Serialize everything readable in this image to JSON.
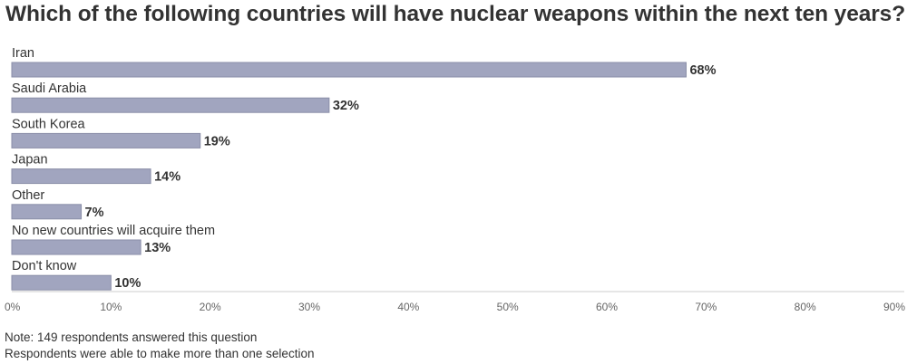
{
  "chart_data": {
    "type": "bar",
    "orientation": "horizontal",
    "title": "Which of the following countries will have nuclear weapons within the next ten years?",
    "categories": [
      "Iran",
      "Saudi Arabia",
      "South Korea",
      "Japan",
      "Other",
      "No new countries will acquire them",
      "Don't know"
    ],
    "values": [
      68,
      32,
      19,
      14,
      7,
      13,
      10
    ],
    "value_labels": [
      "68%",
      "32%",
      "19%",
      "14%",
      "7%",
      "13%",
      "10%"
    ],
    "xlim": [
      0,
      90
    ],
    "x_ticks": [
      0,
      10,
      20,
      30,
      40,
      50,
      60,
      70,
      80,
      90
    ],
    "x_tick_labels": [
      "0%",
      "10%",
      "20%",
      "30%",
      "40%",
      "50%",
      "60%",
      "70%",
      "80%",
      "90%"
    ],
    "xlabel": "",
    "ylabel": "",
    "grid": false,
    "bar_color": "#a1a5bf",
    "bar_edge_color": "#8a8ea8"
  },
  "notes": [
    "Note: 149 respondents answered this question",
    "Respondents were able to make more than one selection"
  ]
}
